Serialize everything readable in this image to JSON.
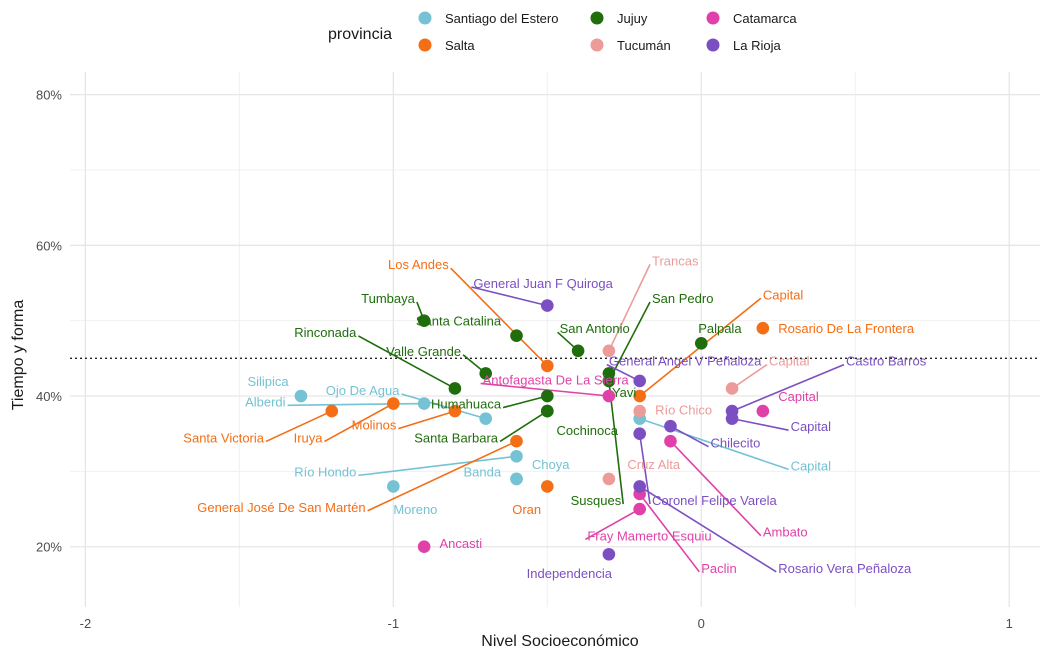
{
  "chart_data": {
    "type": "scatter",
    "title": "",
    "xlabel": "Nivel Socioeconómico",
    "ylabel": "Tiempo y forma",
    "xlim": [
      -2.05,
      1.1
    ],
    "ylim": [
      0.12,
      0.83
    ],
    "x_ticks": [
      -2,
      -1,
      0,
      1
    ],
    "x_tick_labels": [
      "-2",
      "-1",
      "0",
      "1"
    ],
    "y_ticks": [
      0.2,
      0.4,
      0.6,
      0.8
    ],
    "y_tick_labels": [
      "20%",
      "40%",
      "60%",
      "80%"
    ],
    "reference_line_y": 0.45,
    "grid": true,
    "legend": {
      "title": "provincia",
      "placement": "top",
      "entries": [
        "Santiago del Estero",
        "Salta",
        "Jujuy",
        "Tucumán",
        "Catamarca",
        "La Rioja"
      ]
    },
    "colors": {
      "Santiago del Estero": "#74c2d4",
      "Salta": "#f36e15",
      "Jujuy": "#1f6d0c",
      "Tucumán": "#ec9b99",
      "Catamarca": "#e041a8",
      "La Rioja": "#7b4fc2"
    },
    "points": [
      {
        "label": "Silipica",
        "provincia": "Santiago del Estero",
        "x": -1.3,
        "y": 0.4,
        "lx": -1.34,
        "ly": 0.42,
        "anchor": "end"
      },
      {
        "label": "Alberdi",
        "provincia": "Santiago del Estero",
        "x": -0.9,
        "y": 0.39,
        "lx": -1.35,
        "ly": 0.393,
        "anchor": "end"
      },
      {
        "label": "Ojo De Agua",
        "provincia": "Santiago del Estero",
        "x": -0.7,
        "y": 0.37,
        "lx": -0.98,
        "ly": 0.408,
        "anchor": "end"
      },
      {
        "label": "Río Hondo",
        "provincia": "Santiago del Estero",
        "x": -0.6,
        "y": 0.32,
        "lx": -1.12,
        "ly": 0.3,
        "anchor": "end"
      },
      {
        "label": "Moreno",
        "provincia": "Santiago del Estero",
        "x": -1.0,
        "y": 0.28,
        "lx": -1.0,
        "ly": 0.25,
        "anchor": "start"
      },
      {
        "label": "Banda",
        "provincia": "Santiago del Estero",
        "x": -0.6,
        "y": 0.29,
        "lx": -0.65,
        "ly": 0.3,
        "anchor": "end"
      },
      {
        "label": "Choya",
        "provincia": "Santiago del Estero",
        "x": -0.6,
        "y": 0.29,
        "lx": -0.55,
        "ly": 0.31,
        "anchor": "start"
      },
      {
        "label": "Capital",
        "provincia": "Santiago del Estero",
        "x": -0.2,
        "y": 0.37,
        "lx": 0.29,
        "ly": 0.308,
        "anchor": "start"
      },
      {
        "label": "Los Andes",
        "provincia": "Salta",
        "x": -0.5,
        "y": 0.44,
        "lx": -0.82,
        "ly": 0.575,
        "anchor": "end"
      },
      {
        "label": "Santa Victoria",
        "provincia": "Salta",
        "x": -1.2,
        "y": 0.38,
        "lx": -1.42,
        "ly": 0.345,
        "anchor": "end"
      },
      {
        "label": "Iruya",
        "provincia": "Salta",
        "x": -1.0,
        "y": 0.39,
        "lx": -1.23,
        "ly": 0.345,
        "anchor": "end"
      },
      {
        "label": "Molinos",
        "provincia": "Salta",
        "x": -0.8,
        "y": 0.38,
        "lx": -0.99,
        "ly": 0.362,
        "anchor": "end"
      },
      {
        "label": "General José De San Martén",
        "provincia": "Salta",
        "x": -0.6,
        "y": 0.34,
        "lx": -1.09,
        "ly": 0.253,
        "anchor": "end"
      },
      {
        "label": "Oran",
        "provincia": "Salta",
        "x": -0.5,
        "y": 0.28,
        "lx": -0.52,
        "ly": 0.25,
        "anchor": "end"
      },
      {
        "label": "Capital",
        "provincia": "Salta",
        "x": -0.2,
        "y": 0.4,
        "lx": 0.2,
        "ly": 0.535,
        "anchor": "start"
      },
      {
        "label": "Rosario De La Frontera",
        "provincia": "Salta",
        "x": 0.2,
        "y": 0.49,
        "lx": 0.25,
        "ly": 0.49,
        "anchor": "start"
      },
      {
        "label": "Tumbaya",
        "provincia": "Jujuy",
        "x": -0.9,
        "y": 0.5,
        "lx": -0.93,
        "ly": 0.53,
        "anchor": "end"
      },
      {
        "label": "Santa Catalina",
        "provincia": "Jujuy",
        "x": -0.6,
        "y": 0.48,
        "lx": -0.65,
        "ly": 0.5,
        "anchor": "end"
      },
      {
        "label": "Rinconada",
        "provincia": "Jujuy",
        "x": -0.8,
        "y": 0.41,
        "lx": -1.12,
        "ly": 0.485,
        "anchor": "end"
      },
      {
        "label": "Valle Grande",
        "provincia": "Jujuy",
        "x": -0.7,
        "y": 0.43,
        "lx": -0.78,
        "ly": 0.46,
        "anchor": "end"
      },
      {
        "label": "Humahuaca",
        "provincia": "Jujuy",
        "x": -0.5,
        "y": 0.4,
        "lx": -0.65,
        "ly": 0.39,
        "anchor": "end"
      },
      {
        "label": "Santa Barbara",
        "provincia": "Jujuy",
        "x": -0.5,
        "y": 0.38,
        "lx": -0.66,
        "ly": 0.345,
        "anchor": "end"
      },
      {
        "label": "Cochinoca",
        "provincia": "Jujuy",
        "x": -0.5,
        "y": 0.38,
        "lx": -0.47,
        "ly": 0.355,
        "anchor": "start"
      },
      {
        "label": "San Antonio",
        "provincia": "Jujuy",
        "x": -0.4,
        "y": 0.46,
        "lx": -0.46,
        "ly": 0.49,
        "anchor": "start"
      },
      {
        "label": "San Pedro",
        "provincia": "Jujuy",
        "x": -0.3,
        "y": 0.42,
        "lx": -0.16,
        "ly": 0.53,
        "anchor": "start"
      },
      {
        "label": "Yavi",
        "provincia": "Jujuy",
        "x": -0.3,
        "y": 0.43,
        "lx": -0.29,
        "ly": 0.405,
        "anchor": "start"
      },
      {
        "label": "Palpala",
        "provincia": "Jujuy",
        "x": 0.0,
        "y": 0.47,
        "lx": -0.01,
        "ly": 0.49,
        "anchor": "start"
      },
      {
        "label": "Susques",
        "provincia": "Jujuy",
        "x": -0.3,
        "y": 0.42,
        "lx": -0.26,
        "ly": 0.262,
        "anchor": "end"
      },
      {
        "label": "Trancas",
        "provincia": "Tucumán",
        "x": -0.3,
        "y": 0.46,
        "lx": -0.16,
        "ly": 0.58,
        "anchor": "start"
      },
      {
        "label": "Capital",
        "provincia": "Tucumán",
        "x": 0.1,
        "y": 0.41,
        "lx": 0.22,
        "ly": 0.447,
        "anchor": "start"
      },
      {
        "label": "Río Chico",
        "provincia": "Tucumán",
        "x": -0.2,
        "y": 0.38,
        "lx": -0.15,
        "ly": 0.382,
        "anchor": "start"
      },
      {
        "label": "Cruz Alta",
        "provincia": "Tucumán",
        "x": -0.3,
        "y": 0.29,
        "lx": -0.24,
        "ly": 0.31,
        "anchor": "start"
      },
      {
        "label": "Antofagasta De La Sierra",
        "provincia": "Catamarca",
        "x": -0.3,
        "y": 0.4,
        "lx": -0.71,
        "ly": 0.422,
        "anchor": "start"
      },
      {
        "label": "Capital",
        "provincia": "Catamarca",
        "x": 0.2,
        "y": 0.38,
        "lx": 0.25,
        "ly": 0.4,
        "anchor": "start"
      },
      {
        "label": "Ambato",
        "provincia": "Catamarca",
        "x": -0.1,
        "y": 0.34,
        "lx": 0.2,
        "ly": 0.22,
        "anchor": "start"
      },
      {
        "label": "Fray Mamerto Esquiu",
        "provincia": "Catamarca",
        "x": -0.2,
        "y": 0.25,
        "lx": -0.37,
        "ly": 0.215,
        "anchor": "start"
      },
      {
        "label": "Paclin",
        "provincia": "Catamarca",
        "x": -0.2,
        "y": 0.27,
        "lx": 0.0,
        "ly": 0.172,
        "anchor": "start"
      },
      {
        "label": "Ancasti",
        "provincia": "Catamarca",
        "x": -0.9,
        "y": 0.2,
        "lx": -0.85,
        "ly": 0.205,
        "anchor": "start"
      },
      {
        "label": "General Juan F Quiroga",
        "provincia": "La Rioja",
        "x": -0.5,
        "y": 0.52,
        "lx": -0.74,
        "ly": 0.55,
        "anchor": "start"
      },
      {
        "label": "General Angel V Peñaloza",
        "provincia": "La Rioja",
        "x": -0.2,
        "y": 0.42,
        "lx": -0.3,
        "ly": 0.447,
        "anchor": "start"
      },
      {
        "label": "Castro Barros",
        "provincia": "La Rioja",
        "x": 0.1,
        "y": 0.38,
        "lx": 0.47,
        "ly": 0.447,
        "anchor": "start"
      },
      {
        "label": "Capital",
        "provincia": "La Rioja",
        "x": 0.1,
        "y": 0.37,
        "lx": 0.29,
        "ly": 0.36,
        "anchor": "start"
      },
      {
        "label": "Chilecito",
        "provincia": "La Rioja",
        "x": -0.1,
        "y": 0.36,
        "lx": 0.03,
        "ly": 0.338,
        "anchor": "start"
      },
      {
        "label": "Coronel Felipe Varela",
        "provincia": "La Rioja",
        "x": -0.2,
        "y": 0.35,
        "lx": -0.16,
        "ly": 0.262,
        "anchor": "start"
      },
      {
        "label": "Rosario Vera Peñaloza",
        "provincia": "La Rioja",
        "x": -0.2,
        "y": 0.28,
        "lx": 0.25,
        "ly": 0.172,
        "anchor": "start"
      },
      {
        "label": "Independencia",
        "provincia": "La Rioja",
        "x": -0.3,
        "y": 0.19,
        "lx": -0.29,
        "ly": 0.165,
        "anchor": "end"
      }
    ]
  }
}
